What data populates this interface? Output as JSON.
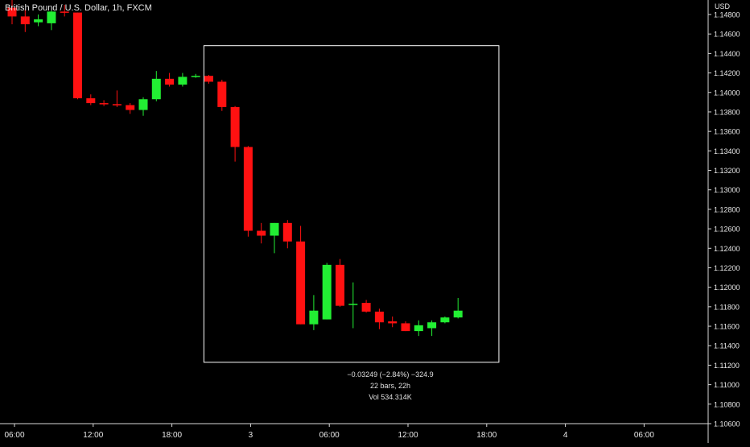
{
  "header": {
    "title": "British Pound / U.S. Dollar, 1h, FXCM",
    "currency": "USD"
  },
  "measure": {
    "line1": "−0.03249 (−2.84%) −324.9",
    "line2": "22 bars, 22h",
    "line3": "Vol 534.314K"
  },
  "colors": {
    "background": "#000000",
    "up": "#22ee33",
    "down": "#ff1111",
    "axis_text": "#e8e8e8",
    "selection": "#ffffff"
  },
  "chart_data": {
    "type": "candlestick",
    "title": "British Pound / U.S. Dollar, 1h, FXCM",
    "ylabel": "USD",
    "ylim": [
      1.106,
      1.148
    ],
    "y_ticks": [
      "1.14800",
      "1.14600",
      "1.14400",
      "1.14200",
      "1.14000",
      "1.13800",
      "1.13600",
      "1.13400",
      "1.13200",
      "1.13000",
      "1.12800",
      "1.12600",
      "1.12400",
      "1.12200",
      "1.12000",
      "1.11800",
      "1.11600",
      "1.11400",
      "1.11200",
      "1.11000",
      "1.10800",
      "1.10600"
    ],
    "x_ticks": [
      {
        "label": "06:00",
        "bar": 0
      },
      {
        "label": "12:00",
        "bar": 6
      },
      {
        "label": "18:00",
        "bar": 12
      },
      {
        "label": "3",
        "bar": 18
      },
      {
        "label": "06:00",
        "bar": 24
      },
      {
        "label": "12:00",
        "bar": 30
      },
      {
        "label": "18:00",
        "bar": 36
      },
      {
        "label": "4",
        "bar": 42
      },
      {
        "label": "06:00",
        "bar": 48
      }
    ],
    "candles": [
      {
        "open": 1.1487,
        "high": 1.1495,
        "low": 1.147,
        "close": 1.1478
      },
      {
        "open": 1.1478,
        "high": 1.1485,
        "low": 1.1462,
        "close": 1.147
      },
      {
        "open": 1.1472,
        "high": 1.148,
        "low": 1.1468,
        "close": 1.1475
      },
      {
        "open": 1.1471,
        "high": 1.1484,
        "low": 1.1464,
        "close": 1.1483
      },
      {
        "open": 1.1483,
        "high": 1.149,
        "low": 1.1478,
        "close": 1.1482
      },
      {
        "open": 1.1482,
        "high": 1.1482,
        "low": 1.1393,
        "close": 1.1394
      },
      {
        "open": 1.1394,
        "high": 1.1398,
        "low": 1.1387,
        "close": 1.1389
      },
      {
        "open": 1.1389,
        "high": 1.1392,
        "low": 1.1386,
        "close": 1.1388
      },
      {
        "open": 1.1388,
        "high": 1.1402,
        "low": 1.1385,
        "close": 1.1387
      },
      {
        "open": 1.1387,
        "high": 1.1389,
        "low": 1.1378,
        "close": 1.1382
      },
      {
        "open": 1.1382,
        "high": 1.1395,
        "low": 1.1376,
        "close": 1.1393
      },
      {
        "open": 1.1393,
        "high": 1.1422,
        "low": 1.1391,
        "close": 1.1414
      },
      {
        "open": 1.1414,
        "high": 1.142,
        "low": 1.1406,
        "close": 1.1408
      },
      {
        "open": 1.1408,
        "high": 1.142,
        "low": 1.1406,
        "close": 1.1416
      },
      {
        "open": 1.1416,
        "high": 1.1419,
        "low": 1.1415,
        "close": 1.1417
      },
      {
        "open": 1.1417,
        "high": 1.1418,
        "low": 1.1409,
        "close": 1.1411
      },
      {
        "open": 1.1411,
        "high": 1.1413,
        "low": 1.1381,
        "close": 1.1385
      },
      {
        "open": 1.1385,
        "high": 1.1386,
        "low": 1.1329,
        "close": 1.1344
      },
      {
        "open": 1.1344,
        "high": 1.1345,
        "low": 1.1252,
        "close": 1.1258
      },
      {
        "open": 1.1258,
        "high": 1.1266,
        "low": 1.1245,
        "close": 1.1253
      },
      {
        "open": 1.1253,
        "high": 1.1266,
        "low": 1.1235,
        "close": 1.1266
      },
      {
        "open": 1.1266,
        "high": 1.1269,
        "low": 1.124,
        "close": 1.1247
      },
      {
        "open": 1.1247,
        "high": 1.1263,
        "low": 1.1162,
        "close": 1.1162
      },
      {
        "open": 1.1162,
        "high": 1.1192,
        "low": 1.1156,
        "close": 1.1176
      },
      {
        "open": 1.1167,
        "high": 1.1225,
        "low": 1.1167,
        "close": 1.1223
      },
      {
        "open": 1.1223,
        "high": 1.1229,
        "low": 1.118,
        "close": 1.1181
      },
      {
        "open": 1.1182,
        "high": 1.1205,
        "low": 1.1158,
        "close": 1.1183
      },
      {
        "open": 1.1184,
        "high": 1.1187,
        "low": 1.1174,
        "close": 1.1175
      },
      {
        "open": 1.1175,
        "high": 1.1178,
        "low": 1.1157,
        "close": 1.1164
      },
      {
        "open": 1.1165,
        "high": 1.117,
        "low": 1.1159,
        "close": 1.1163
      },
      {
        "open": 1.1163,
        "high": 1.1165,
        "low": 1.1155,
        "close": 1.1155
      },
      {
        "open": 1.1155,
        "high": 1.1166,
        "low": 1.115,
        "close": 1.1161
      },
      {
        "open": 1.1158,
        "high": 1.1166,
        "low": 1.115,
        "close": 1.1164
      },
      {
        "open": 1.1164,
        "high": 1.117,
        "low": 1.1163,
        "close": 1.1169
      },
      {
        "open": 1.1169,
        "high": 1.1189,
        "low": 1.1168,
        "close": 1.1176
      }
    ],
    "selection": {
      "from_bar": 15,
      "to_bar": 36,
      "top_price": 1.1448,
      "bottom_price": 1.1123
    }
  }
}
